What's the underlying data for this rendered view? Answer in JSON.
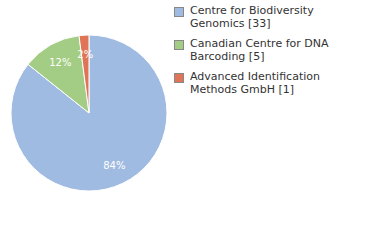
{
  "chart_data": {
    "type": "pie",
    "categories": [
      "Centre for Biodiversity Genomics [33]",
      "Canadian Centre for DNA Barcoding [5]",
      "Advanced Identification Methods GmbH [1]"
    ],
    "values": [
      84,
      12,
      2
    ],
    "value_labels": [
      "84%",
      "12%",
      "2%"
    ],
    "colors": [
      "#9fbbe1",
      "#a3cd84",
      "#df7457"
    ],
    "data_labels": true,
    "legend": "right"
  }
}
